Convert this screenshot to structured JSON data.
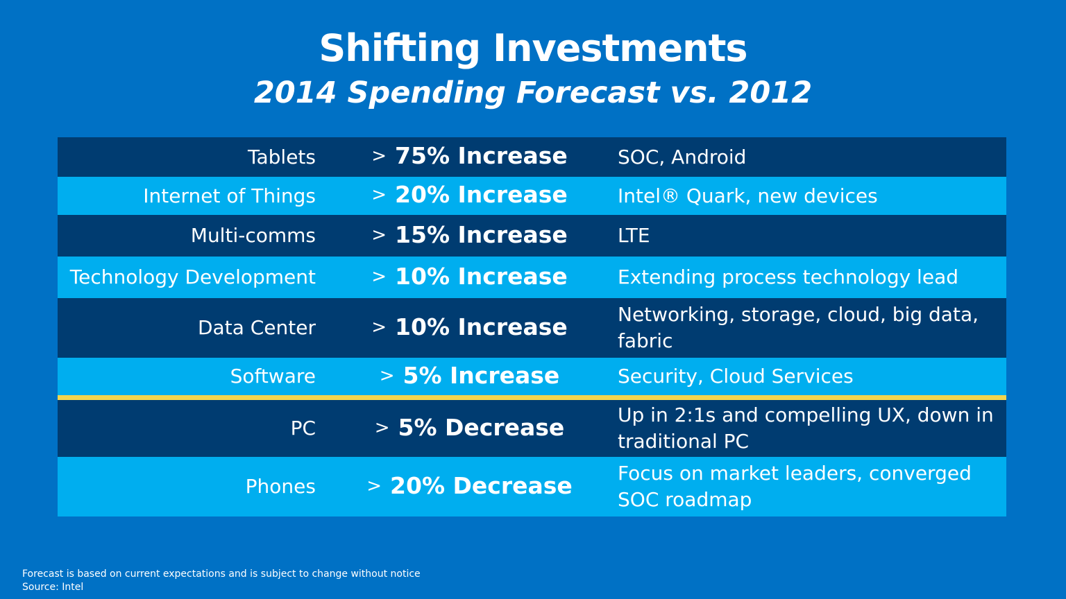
{
  "header": {
    "title": "Shifting Investments",
    "subtitle": "2014 Spending Forecast vs. 2012"
  },
  "rows": [
    {
      "category": "Tablets",
      "marker": ">",
      "change": "75% Increase",
      "note": "SOC, Android"
    },
    {
      "category": "Internet of Things",
      "marker": ">",
      "change": "20% Increase",
      "note": "Intel® Quark, new devices"
    },
    {
      "category": "Multi-comms",
      "marker": ">",
      "change": "15% Increase",
      "note": "LTE"
    },
    {
      "category": "Technology Development",
      "marker": ">",
      "change": "10% Increase",
      "note": "Extending process technology lead"
    },
    {
      "category": "Data Center",
      "marker": ">",
      "change": "10% Increase",
      "note": "Networking, storage, cloud, big data, fabric"
    },
    {
      "category": "Software",
      "marker": ">",
      "change": "5% Increase",
      "note": "Security, Cloud Services"
    },
    {
      "category": "PC",
      "marker": ">",
      "change": "5% Decrease",
      "note": "Up in 2:1s and compelling UX, down in traditional PC"
    },
    {
      "category": "Phones",
      "marker": ">",
      "change": "20% Decrease",
      "note": "Focus on market leaders, converged SOC roadmap"
    }
  ],
  "footer": {
    "disclaimer": "Forecast is based on current expectations and is subject to change without notice",
    "source": "Source: Intel"
  },
  "colors": {
    "background": "#0071c5",
    "row_dark": "#003c71",
    "row_light": "#00aeef",
    "divider": "#f3d54e"
  }
}
